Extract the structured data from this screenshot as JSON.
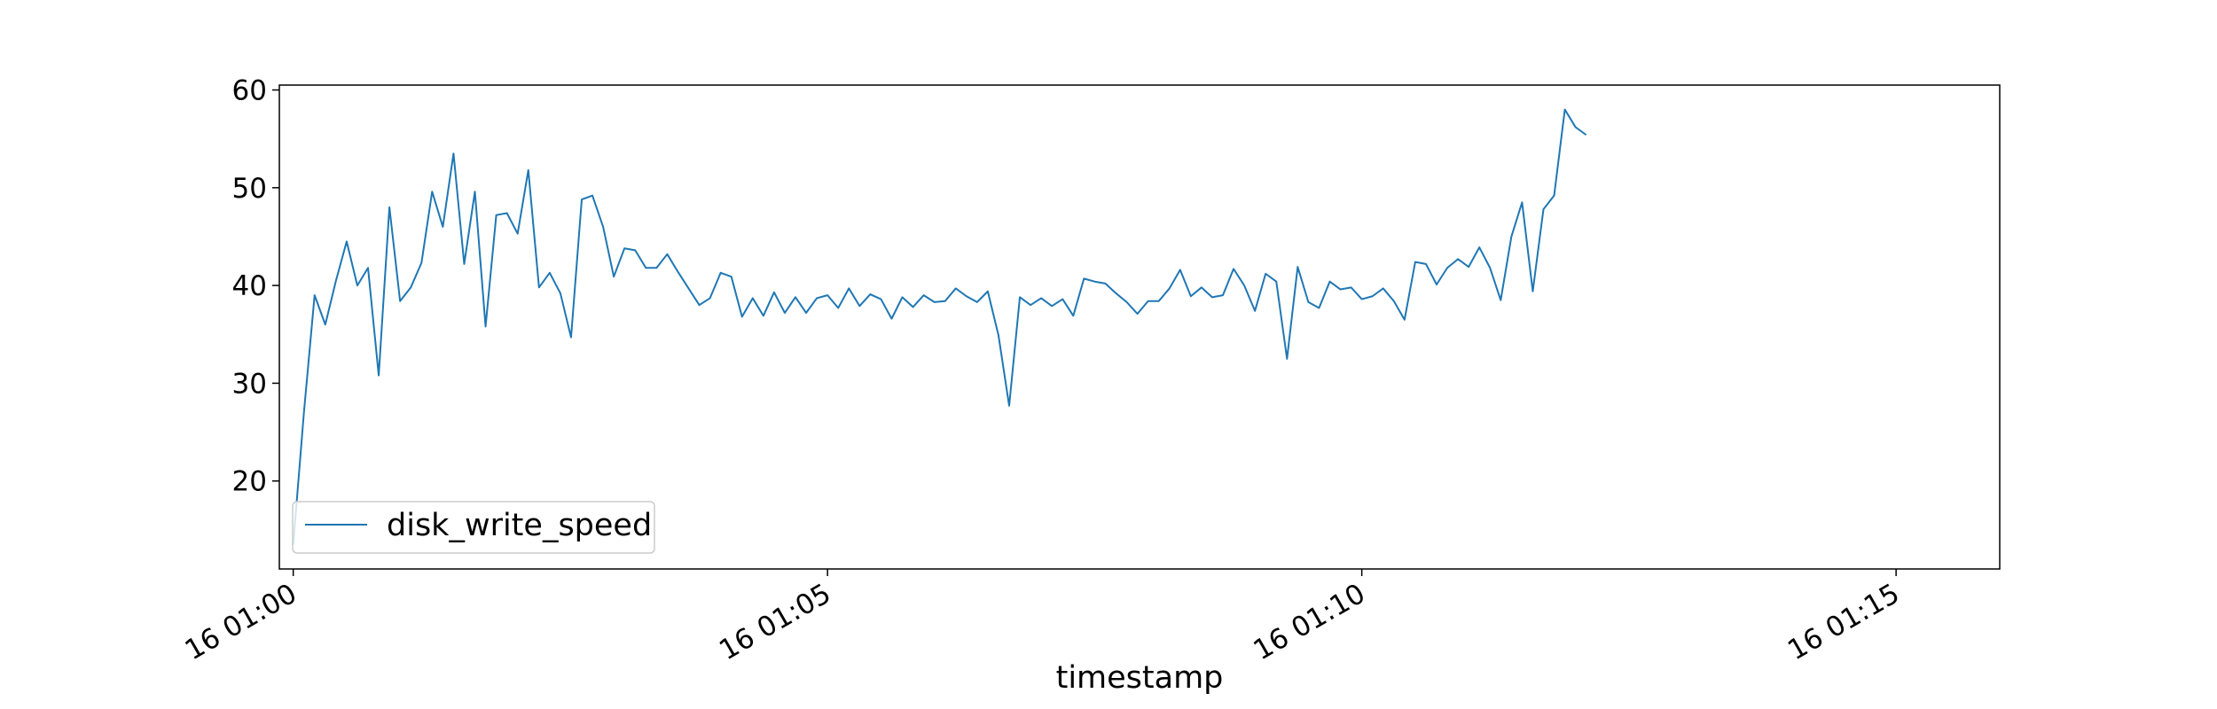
{
  "chart_data": {
    "type": "line",
    "title": "",
    "xlabel": "timestamp",
    "ylabel": "",
    "x_start": "16 01:00",
    "x_interval_seconds": 6,
    "xlim": [
      -0.13,
      15.97
    ],
    "ylim": [
      11.0,
      60.5
    ],
    "x_ticks": [
      {
        "minute": 0,
        "label": "16 01:00"
      },
      {
        "minute": 5,
        "label": "16 01:05"
      },
      {
        "minute": 10,
        "label": "16 01:10"
      },
      {
        "minute": 15,
        "label": "16 01:15"
      }
    ],
    "y_ticks": [
      20,
      30,
      40,
      50,
      60
    ],
    "grid": false,
    "legend": {
      "position": "lower-left",
      "entries": [
        "disk_write_speed"
      ]
    },
    "colors": {
      "series": "#1f77b4",
      "axes": "#000000",
      "legend_border": "#cccccc"
    },
    "series": [
      {
        "name": "disk_write_speed",
        "values": [
          13.5,
          27.0,
          39.0,
          36.0,
          40.5,
          44.5,
          40.0,
          41.8,
          30.8,
          48.0,
          38.4,
          39.8,
          42.3,
          49.6,
          46.0,
          53.5,
          42.2,
          49.6,
          35.8,
          47.2,
          47.4,
          45.3,
          51.8,
          39.8,
          41.3,
          39.2,
          34.7,
          48.8,
          49.2,
          46.0,
          40.9,
          43.8,
          43.6,
          41.8,
          41.8,
          43.2,
          41.4,
          39.7,
          38.0,
          38.7,
          41.3,
          40.9,
          36.8,
          38.7,
          36.9,
          39.3,
          37.2,
          38.8,
          37.2,
          38.7,
          39.0,
          37.7,
          39.7,
          37.9,
          39.1,
          38.6,
          36.6,
          38.8,
          37.8,
          39.0,
          38.3,
          38.4,
          39.7,
          38.9,
          38.3,
          39.4,
          34.9,
          27.7,
          38.8,
          38.0,
          38.7,
          37.9,
          38.6,
          36.9,
          40.7,
          40.4,
          40.2,
          39.2,
          38.3,
          37.1,
          38.4,
          38.4,
          39.7,
          41.6,
          38.9,
          39.8,
          38.8,
          39.0,
          41.7,
          40.0,
          37.4,
          41.2,
          40.4,
          32.5,
          41.9,
          38.3,
          37.7,
          40.4,
          39.6,
          39.8,
          38.6,
          38.9,
          39.7,
          38.4,
          36.5,
          42.4,
          42.2,
          40.1,
          41.8,
          42.7,
          41.9,
          43.9,
          41.8,
          38.5,
          45.0,
          48.5,
          39.4,
          47.8,
          49.2,
          58.0,
          56.2,
          55.4
        ]
      }
    ]
  }
}
